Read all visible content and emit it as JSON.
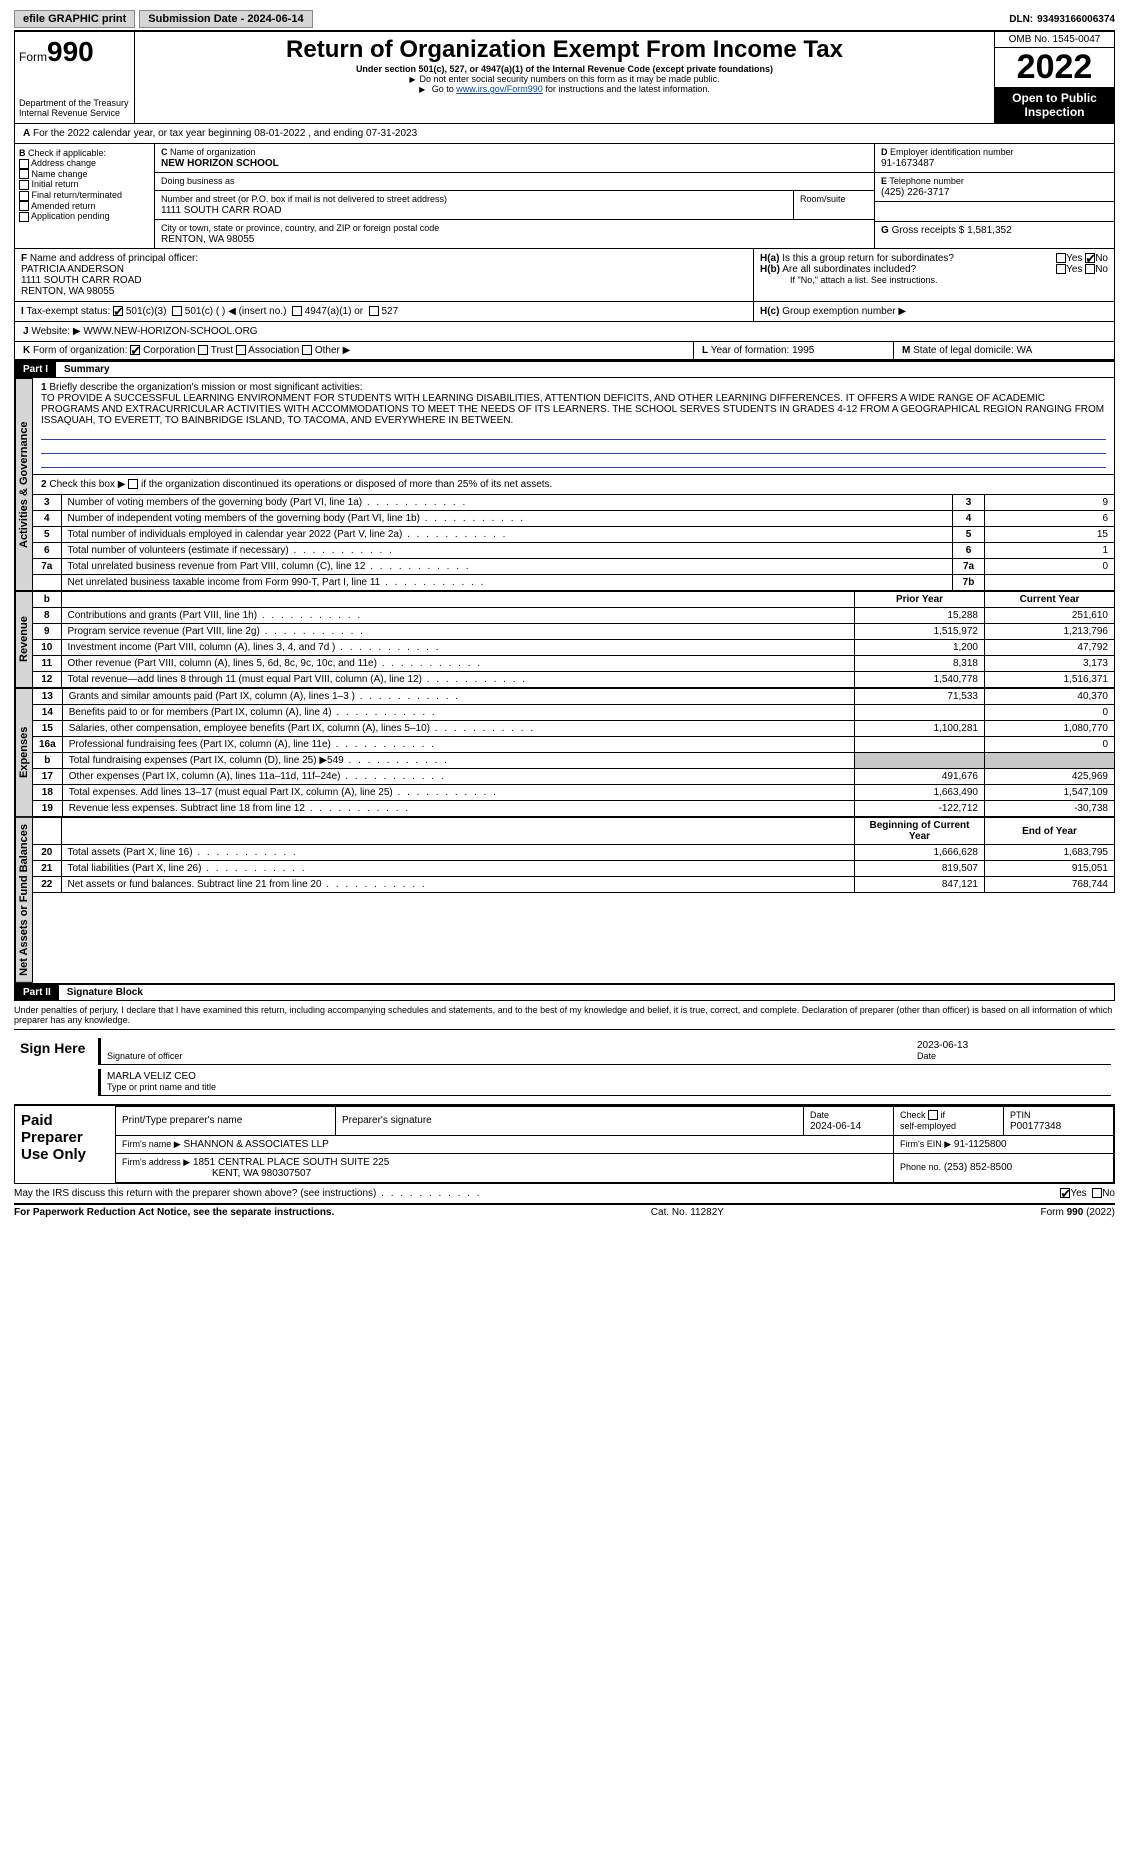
{
  "top": {
    "efile": "efile GRAPHIC print",
    "submission": "Submission Date - 2024-06-14",
    "dln_label": "DLN:",
    "dln": "93493166006374"
  },
  "header": {
    "form_word": "Form",
    "form_num": "990",
    "title": "Return of Organization Exempt From Income Tax",
    "sub1": "Under section 501(c), 527, or 4947(a)(1) of the Internal Revenue Code (except private foundations)",
    "sub2": "Do not enter social security numbers on this form as it may be made public.",
    "sub3_pre": "Go to ",
    "sub3_link": "www.irs.gov/Form990",
    "sub3_post": " for instructions and the latest information.",
    "dept": "Department of the Treasury\nInternal Revenue Service",
    "omb": "OMB No. 1545-0047",
    "year": "2022",
    "inspect": "Open to Public Inspection"
  },
  "A": {
    "text": "For the 2022 calendar year, or tax year beginning 08-01-2022    , and ending 07-31-2023"
  },
  "B": {
    "label": "Check if applicable:",
    "opts": [
      "Address change",
      "Name change",
      "Initial return",
      "Final return/terminated",
      "Amended return",
      "Application pending"
    ]
  },
  "C": {
    "name_label": "Name of organization",
    "name": "NEW HORIZON SCHOOL",
    "dba_label": "Doing business as",
    "addr_label": "Number and street (or P.O. box if mail is not delivered to street address)",
    "addr": "1111 SOUTH CARR ROAD",
    "room_label": "Room/suite",
    "city_label": "City or town, state or province, country, and ZIP or foreign postal code",
    "city": "RENTON, WA  98055"
  },
  "D": {
    "label": "Employer identification number",
    "val": "91-1673487"
  },
  "E": {
    "label": "Telephone number",
    "val": "(425) 226-3717"
  },
  "G": {
    "label": "Gross receipts $",
    "val": "1,581,352"
  },
  "F": {
    "label": "Name and address of principal officer:",
    "name": "PATRICIA ANDERSON",
    "addr1": "1111 SOUTH CARR ROAD",
    "addr2": "RENTON, WA  98055"
  },
  "H": {
    "a": "Is this a group return for subordinates?",
    "b": "Are all subordinates included?",
    "b_note": "If \"No,\" attach a list. See instructions.",
    "c": "Group exemption number ▶",
    "yes": "Yes",
    "no": "No"
  },
  "I": {
    "label": "Tax-exempt status:",
    "o1": "501(c)(3)",
    "o2": "501(c) (  ) ◀ (insert no.)",
    "o3": "4947(a)(1) or",
    "o4": "527"
  },
  "J": {
    "label": "Website: ▶",
    "val": "WWW.NEW-HORIZON-SCHOOL.ORG"
  },
  "K": {
    "label": "Form of organization:",
    "opts": [
      "Corporation",
      "Trust",
      "Association",
      "Other ▶"
    ]
  },
  "L": {
    "label": "Year of formation:",
    "val": "1995"
  },
  "M": {
    "label": "State of legal domicile:",
    "val": "WA"
  },
  "part1": {
    "bar": "Part I",
    "title": "Summary"
  },
  "summary": {
    "l1_label": "Briefly describe the organization's mission or most significant activities:",
    "mission": "TO PROVIDE A SUCCESSFUL LEARNING ENVIRONMENT FOR STUDENTS WITH LEARNING DISABILITIES, ATTENTION DEFICITS, AND OTHER LEARNING DIFFERENCES. IT OFFERS A WIDE RANGE OF ACADEMIC PROGRAMS AND EXTRACURRICULAR ACTIVITIES WITH ACCOMMODATIONS TO MEET THE NEEDS OF ITS LEARNERS. THE SCHOOL SERVES STUDENTS IN GRADES 4-12 FROM A GEOGRAPHICAL REGION RANGING FROM ISSAQUAH, TO EVERETT, TO BAINBRIDGE ISLAND, TO TACOMA, AND EVERYWHERE IN BETWEEN.",
    "l2": "Check this box ▶",
    "l2b": "if the organization discontinued its operations or disposed of more than 25% of its net assets.",
    "sidebars": {
      "ag": "Activities & Governance",
      "rev": "Revenue",
      "exp": "Expenses",
      "na": "Net Assets or Fund Balances"
    },
    "rows_ag": [
      {
        "n": "3",
        "d": "Number of voting members of the governing body (Part VI, line 1a)",
        "b": "3",
        "v": "9"
      },
      {
        "n": "4",
        "d": "Number of independent voting members of the governing body (Part VI, line 1b)",
        "b": "4",
        "v": "6"
      },
      {
        "n": "5",
        "d": "Total number of individuals employed in calendar year 2022 (Part V, line 2a)",
        "b": "5",
        "v": "15"
      },
      {
        "n": "6",
        "d": "Total number of volunteers (estimate if necessary)",
        "b": "6",
        "v": "1"
      },
      {
        "n": "7a",
        "d": "Total unrelated business revenue from Part VIII, column (C), line 12",
        "b": "7a",
        "v": "0"
      },
      {
        "n": "",
        "d": "Net unrelated business taxable income from Form 990-T, Part I, line 11",
        "b": "7b",
        "v": ""
      }
    ],
    "hdr_b": "b",
    "hdr_prior": "Prior Year",
    "hdr_curr": "Current Year",
    "rows_rev": [
      {
        "n": "8",
        "d": "Contributions and grants (Part VIII, line 1h)",
        "p": "15,288",
        "c": "251,610"
      },
      {
        "n": "9",
        "d": "Program service revenue (Part VIII, line 2g)",
        "p": "1,515,972",
        "c": "1,213,796"
      },
      {
        "n": "10",
        "d": "Investment income (Part VIII, column (A), lines 3, 4, and 7d )",
        "p": "1,200",
        "c": "47,792"
      },
      {
        "n": "11",
        "d": "Other revenue (Part VIII, column (A), lines 5, 6d, 8c, 9c, 10c, and 11e)",
        "p": "8,318",
        "c": "3,173"
      },
      {
        "n": "12",
        "d": "Total revenue—add lines 8 through 11 (must equal Part VIII, column (A), line 12)",
        "p": "1,540,778",
        "c": "1,516,371"
      }
    ],
    "rows_exp": [
      {
        "n": "13",
        "d": "Grants and similar amounts paid (Part IX, column (A), lines 1–3 )",
        "p": "71,533",
        "c": "40,370"
      },
      {
        "n": "14",
        "d": "Benefits paid to or for members (Part IX, column (A), line 4)",
        "p": "",
        "c": "0"
      },
      {
        "n": "15",
        "d": "Salaries, other compensation, employee benefits (Part IX, column (A), lines 5–10)",
        "p": "1,100,281",
        "c": "1,080,770"
      },
      {
        "n": "16a",
        "d": "Professional fundraising fees (Part IX, column (A), line 11e)",
        "p": "",
        "c": "0"
      },
      {
        "n": "b",
        "d": "Total fundraising expenses (Part IX, column (D), line 25) ▶549",
        "p": "__grey__",
        "c": "__grey__"
      },
      {
        "n": "17",
        "d": "Other expenses (Part IX, column (A), lines 11a–11d, 11f–24e)",
        "p": "491,676",
        "c": "425,969"
      },
      {
        "n": "18",
        "d": "Total expenses. Add lines 13–17 (must equal Part IX, column (A), line 25)",
        "p": "1,663,490",
        "c": "1,547,109"
      },
      {
        "n": "19",
        "d": "Revenue less expenses. Subtract line 18 from line 12",
        "p": "-122,712",
        "c": "-30,738"
      }
    ],
    "hdr_beg": "Beginning of Current Year",
    "hdr_end": "End of Year",
    "rows_na": [
      {
        "n": "20",
        "d": "Total assets (Part X, line 16)",
        "p": "1,666,628",
        "c": "1,683,795"
      },
      {
        "n": "21",
        "d": "Total liabilities (Part X, line 26)",
        "p": "819,507",
        "c": "915,051"
      },
      {
        "n": "22",
        "d": "Net assets or fund balances. Subtract line 21 from line 20",
        "p": "847,121",
        "c": "768,744"
      }
    ]
  },
  "part2": {
    "bar": "Part II",
    "title": "Signature Block"
  },
  "sig": {
    "decl": "Under penalties of perjury, I declare that I have examined this return, including accompanying schedules and statements, and to the best of my knowledge and belief, it is true, correct, and complete. Declaration of preparer (other than officer) is based on all information of which preparer has any knowledge.",
    "sign_here": "Sign Here",
    "sig_off": "Signature of officer",
    "date": "Date",
    "date_val": "2023-06-13",
    "type_name": "MARLA VELIZ CEO",
    "type_label": "Type or print name and title",
    "paid": "Paid Preparer Use Only",
    "pt_name": "Print/Type preparer's name",
    "pt_sig": "Preparer's signature",
    "pt_date": "Date",
    "pt_date_v": "2024-06-14",
    "pt_check": "Check         if self-employed",
    "ptin_l": "PTIN",
    "ptin": "P00177348",
    "firm_name_l": "Firm's name    ▶",
    "firm_name": "SHANNON & ASSOCIATES LLP",
    "firm_ein_l": "Firm's EIN ▶",
    "firm_ein": "91-1125800",
    "firm_addr_l": "Firm's address ▶",
    "firm_addr1": "1851 CENTRAL PLACE SOUTH SUITE 225",
    "firm_addr2": "KENT, WA  980307507",
    "phone_l": "Phone no.",
    "phone": "(253) 852-8500",
    "discuss": "May the IRS discuss this return with the preparer shown above? (see instructions)"
  },
  "foot": {
    "pra": "For Paperwork Reduction Act Notice, see the separate instructions.",
    "cat": "Cat. No. 11282Y",
    "form": "Form 990 (2022)"
  }
}
